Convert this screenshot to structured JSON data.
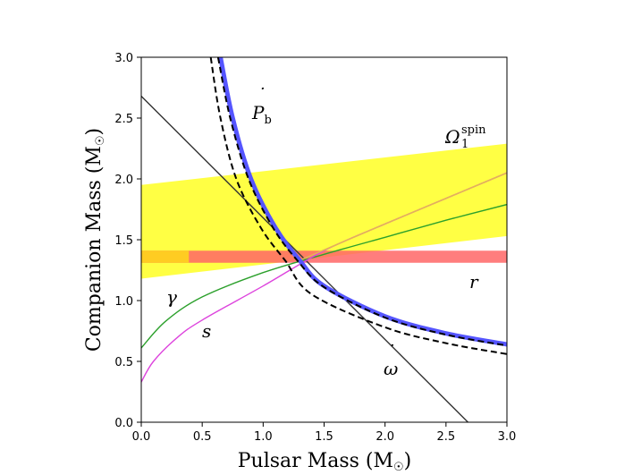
{
  "chart_data": {
    "type": "line",
    "xlabel": "Pulsar Mass (M",
    "ylabel": "Companion Mass (M",
    "sun_symbol": "☉",
    "xlim": [
      0,
      3
    ],
    "ylim": [
      0,
      3
    ],
    "xticks": [
      "0.0",
      "0.5",
      "1.0",
      "1.5",
      "2.0",
      "2.5",
      "3.0"
    ],
    "yticks": [
      "0.0",
      "0.5",
      "1.0",
      "1.5",
      "2.0",
      "2.5",
      "3.0"
    ],
    "labels": {
      "pbdot_main": "P",
      "pbdot_sub": "b",
      "omega_main": "Ω",
      "omega_sub": "1",
      "omega_sup": "spin",
      "gamma": "γ",
      "s": "s",
      "r": "r",
      "omegadot": "ω"
    },
    "bands": [
      {
        "name": "spin-precession",
        "color": "#ffff44",
        "lower": [
          [
            0,
            1.18
          ],
          [
            3,
            1.53
          ]
        ],
        "upper": [
          [
            0,
            1.95
          ],
          [
            3,
            2.29
          ]
        ]
      },
      {
        "name": "shapiro-r",
        "color": "#ff6666",
        "lower": [
          [
            0,
            1.31
          ],
          [
            3,
            1.31
          ]
        ],
        "upper": [
          [
            0,
            1.41
          ],
          [
            3,
            1.41
          ]
        ]
      }
    ],
    "series": [
      {
        "name": "omega-dot",
        "color": "#333333",
        "points": [
          [
            0,
            2.68
          ],
          [
            2.68,
            0
          ]
        ]
      },
      {
        "name": "gamma",
        "color": "#2ca02c",
        "points": [
          [
            0,
            0.61
          ],
          [
            0.2,
            0.83
          ],
          [
            0.5,
            1.03
          ],
          [
            1.0,
            1.23
          ],
          [
            1.5,
            1.38
          ],
          [
            2.0,
            1.52
          ],
          [
            2.5,
            1.66
          ],
          [
            3.0,
            1.79
          ]
        ]
      },
      {
        "name": "s",
        "color": "#dd44dd",
        "points": [
          [
            0,
            0.33
          ],
          [
            0.1,
            0.5
          ],
          [
            0.3,
            0.7
          ],
          [
            0.5,
            0.84
          ],
          [
            1.0,
            1.12
          ],
          [
            1.5,
            1.41
          ],
          [
            2.0,
            1.63
          ],
          [
            2.5,
            1.84
          ],
          [
            3.0,
            2.05
          ]
        ]
      },
      {
        "name": "spin-center",
        "color": "#e3b15a",
        "points": [
          [
            1.3,
            1.33
          ],
          [
            2.0,
            1.63
          ],
          [
            2.5,
            1.84
          ],
          [
            3.0,
            2.05
          ]
        ]
      },
      {
        "name": "pbdot-band",
        "color": "#5555ff",
        "points": [
          [
            0.65,
            3.0
          ],
          [
            0.75,
            2.5
          ],
          [
            0.9,
            2.0
          ],
          [
            1.1,
            1.6
          ],
          [
            1.3,
            1.33
          ],
          [
            1.5,
            1.12
          ],
          [
            2.0,
            0.87
          ],
          [
            2.5,
            0.73
          ],
          [
            3.0,
            0.64
          ]
        ]
      },
      {
        "name": "pbdot-upper",
        "color": "#000000",
        "points": [
          [
            0.63,
            3.0
          ],
          [
            0.73,
            2.5
          ],
          [
            0.88,
            2.0
          ],
          [
            1.08,
            1.6
          ],
          [
            1.28,
            1.33
          ],
          [
            1.5,
            1.11
          ],
          [
            2.0,
            0.86
          ],
          [
            2.5,
            0.72
          ],
          [
            3.0,
            0.63
          ]
        ]
      },
      {
        "name": "pbdot-lower",
        "color": "#000000",
        "points": [
          [
            0.57,
            3.0
          ],
          [
            0.65,
            2.5
          ],
          [
            0.78,
            2.0
          ],
          [
            0.98,
            1.6
          ],
          [
            1.18,
            1.33
          ],
          [
            1.4,
            1.05
          ],
          [
            2.0,
            0.78
          ],
          [
            2.5,
            0.65
          ],
          [
            3.0,
            0.56
          ]
        ]
      }
    ]
  }
}
